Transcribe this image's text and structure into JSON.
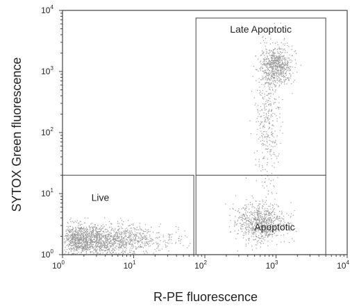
{
  "chart_data": {
    "type": "scatter",
    "xlabel": "R-PE fluorescence",
    "ylabel": "SYTOX Green fluorescence",
    "xscale": "log",
    "yscale": "log",
    "xlim": [
      1,
      10000
    ],
    "ylim": [
      1,
      10000
    ],
    "x_ticks": [
      {
        "base": "10",
        "exp": "0",
        "value": 1
      },
      {
        "base": "10",
        "exp": "1",
        "value": 10
      },
      {
        "base": "10",
        "exp": "2",
        "value": 100
      },
      {
        "base": "10",
        "exp": "3",
        "value": 1000
      },
      {
        "base": "10",
        "exp": "4",
        "value": 10000
      }
    ],
    "y_ticks": [
      {
        "base": "10",
        "exp": "0",
        "value": 1
      },
      {
        "base": "10",
        "exp": "1",
        "value": 10
      },
      {
        "base": "10",
        "exp": "2",
        "value": 100
      },
      {
        "base": "10",
        "exp": "3",
        "value": 1000
      },
      {
        "base": "10",
        "exp": "4",
        "value": 10000
      }
    ],
    "grid": false,
    "point_color": "#9a9a9a",
    "gates": [
      {
        "label": "Live",
        "x_range": [
          1,
          70
        ],
        "y_range": [
          1,
          20
        ]
      },
      {
        "label": "Apoptotic",
        "x_range": [
          75,
          5000
        ],
        "y_range": [
          1,
          20
        ]
      },
      {
        "label": "Late Apoptotic",
        "x_range": [
          75,
          5000
        ],
        "y_range": [
          20,
          7500
        ]
      }
    ],
    "populations": [
      {
        "gate": "Live",
        "n": 1800,
        "x_center_log": 0.55,
        "x_sd_log": 0.5,
        "x_min_log": 0.0,
        "x_max_log": 1.8,
        "y_center_log": 0.25,
        "y_sd_log": 0.12
      },
      {
        "gate": "Apoptotic",
        "n": 750,
        "x_center_log": 2.78,
        "x_sd_log": 0.17,
        "y_center_log": 0.52,
        "y_sd_log": 0.16
      },
      {
        "gate": "Late Apoptotic",
        "n": 700,
        "x_center_log": 3.0,
        "x_sd_log": 0.11,
        "y_center_log": 3.1,
        "y_sd_log": 0.15
      },
      {
        "gate": "Late Apoptotic",
        "n": 350,
        "x_center_log": 2.88,
        "x_sd_log": 0.09,
        "y_center_log": 2.2,
        "y_sd_log": 0.55
      }
    ]
  }
}
